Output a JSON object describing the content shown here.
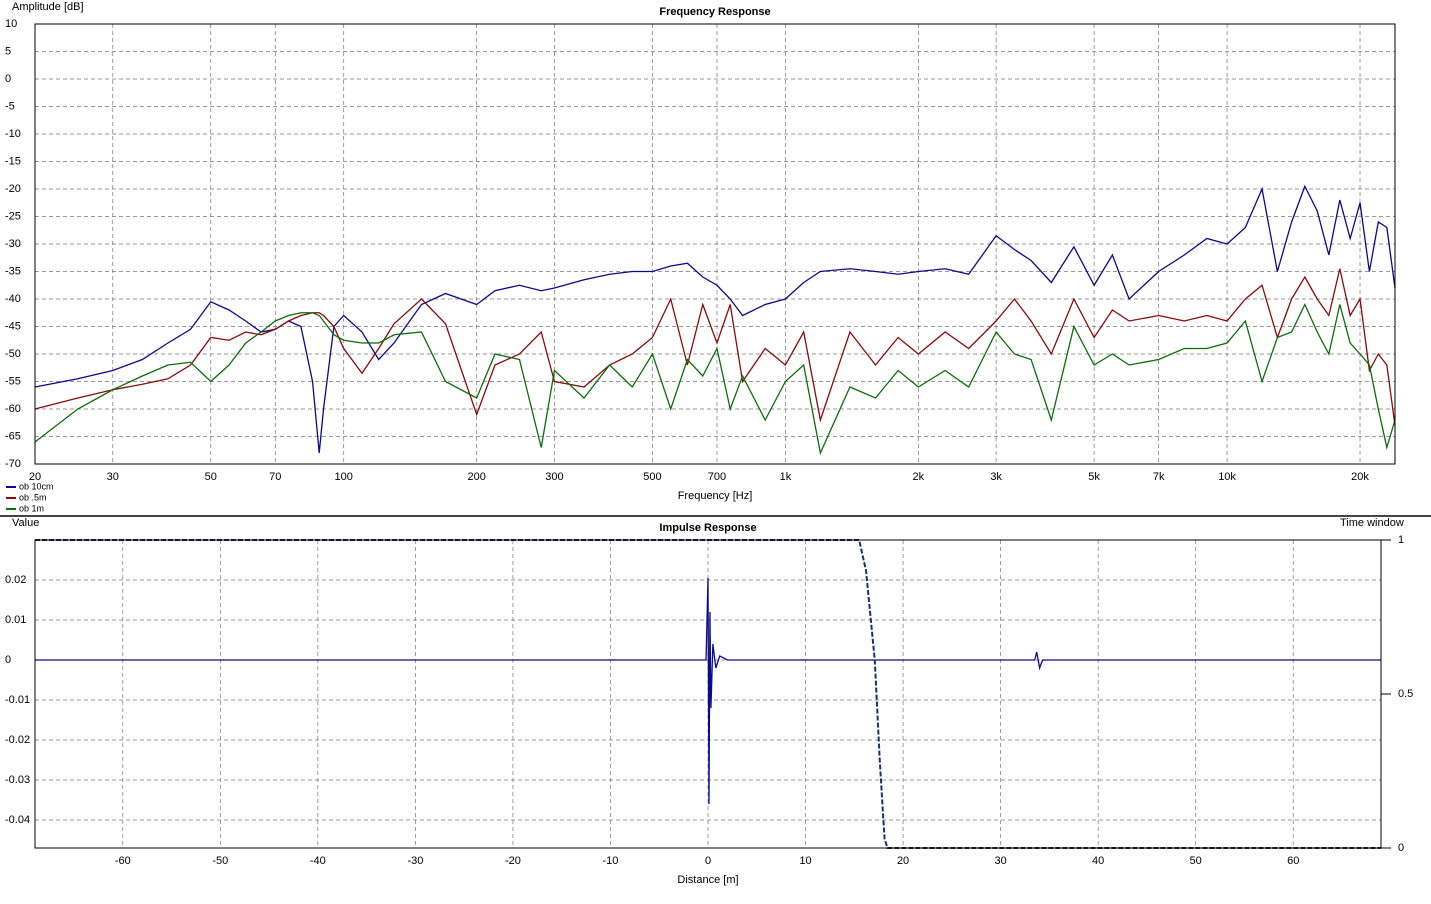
{
  "chart_data": [
    {
      "type": "line",
      "title": "Frequency Response",
      "ylabel": "Amplitude [dB]",
      "xlabel": "Frequency [Hz]",
      "xscale": "log",
      "grid": true,
      "legend": "bottom-left",
      "xlim": [
        20,
        24000
      ],
      "ylim": [
        -70,
        10
      ],
      "xticks": [
        20,
        30,
        50,
        70,
        100,
        200,
        300,
        500,
        700,
        {
          "value": 1000,
          "label": "1k"
        },
        {
          "value": 2000,
          "label": "2k"
        },
        {
          "value": 3000,
          "label": "3k"
        },
        {
          "value": 5000,
          "label": "5k"
        },
        {
          "value": 7000,
          "label": "7k"
        },
        {
          "value": 10000,
          "label": "10k"
        },
        {
          "value": 20000,
          "label": "20k"
        }
      ],
      "yticks": [
        -70,
        -65,
        -60,
        -55,
        -50,
        -45,
        -40,
        -35,
        -30,
        -25,
        -20,
        -15,
        -10,
        -5,
        0,
        5,
        10
      ],
      "x": [
        20,
        25,
        30,
        35,
        40,
        45,
        50,
        55,
        60,
        65,
        70,
        75,
        80,
        85,
        88,
        90,
        95,
        100,
        110,
        120,
        130,
        150,
        170,
        200,
        220,
        250,
        280,
        300,
        350,
        400,
        450,
        500,
        550,
        600,
        650,
        700,
        750,
        800,
        900,
        1000,
        1100,
        1200,
        1400,
        1600,
        1800,
        2000,
        2300,
        2600,
        3000,
        3300,
        3600,
        4000,
        4500,
        5000,
        5500,
        6000,
        7000,
        8000,
        9000,
        10000,
        11000,
        12000,
        13000,
        14000,
        15000,
        16000,
        17000,
        18000,
        19000,
        20000,
        21000,
        22000,
        23000,
        24000
      ],
      "series": [
        {
          "name": "ob 10cm",
          "color": "#0a0a8c",
          "values": [
            -56,
            -54.5,
            -53,
            -51,
            -48,
            -45.5,
            -40.5,
            -42,
            -44,
            -46,
            -45.5,
            -44,
            -45,
            -55,
            -68,
            -60,
            -45,
            -43,
            -46,
            -51,
            -48,
            -41,
            -39,
            -41,
            -38.5,
            -37.5,
            -38.5,
            -38,
            -36.5,
            -35.5,
            -35,
            -35,
            -34,
            -33.5,
            -36,
            -37.5,
            -40,
            -43,
            -41,
            -40,
            -37,
            -35,
            -34.5,
            -35,
            -35.5,
            -35,
            -34.5,
            -35.5,
            -28.5,
            -31,
            -33,
            -37,
            -30.5,
            -37.5,
            -32,
            -40,
            -35,
            -32,
            -29,
            -30,
            -27,
            -20,
            -35,
            -26,
            -19.5,
            -24,
            -32,
            -22,
            -29,
            -22.5,
            -35,
            -26,
            -27,
            -38
          ]
        },
        {
          "name": "ob .5m",
          "color": "#8b0a0a",
          "values": [
            -60,
            -58,
            -56.5,
            -55.5,
            -54.5,
            -52,
            -47,
            -47.5,
            -46,
            -46.5,
            -45.5,
            -44,
            -43,
            -42.5,
            -42.5,
            -43,
            -45,
            -49,
            -53.5,
            -49,
            -44.5,
            -40,
            -44.5,
            -61,
            -52,
            -50,
            -46,
            -55,
            -56,
            -52,
            -50,
            -47,
            -40,
            -52,
            -41,
            -48,
            -41,
            -55,
            -49,
            -52,
            -46,
            -62,
            -46,
            -52,
            -47,
            -50,
            -46,
            -49,
            -44,
            -40,
            -44,
            -50,
            -40,
            -47,
            -42,
            -44,
            -43,
            -44,
            -43,
            -44,
            -40,
            -37.5,
            -47,
            -40,
            -36,
            -40,
            -43,
            -34.5,
            -43,
            -40,
            -53,
            -50,
            -52,
            -63
          ]
        },
        {
          "name": "ob 1m",
          "color": "#0a6e0a",
          "values": [
            -66,
            -60,
            -56.5,
            -54,
            -52,
            -51.5,
            -55,
            -52,
            -48,
            -46,
            -44,
            -43,
            -42.5,
            -42.5,
            -43,
            -44,
            -46.5,
            -47.5,
            -48,
            -48,
            -46.5,
            -46,
            -55,
            -58,
            -50,
            -51,
            -67,
            -53,
            -58,
            -52,
            -56,
            -50,
            -60,
            -51,
            -54,
            -49,
            -60,
            -54,
            -62,
            -55,
            -52,
            -68,
            -56,
            -58,
            -53,
            -56,
            -53,
            -56,
            -46,
            -50,
            -51,
            -62,
            -45,
            -52,
            -50,
            -52,
            -51,
            -49,
            -49,
            -48,
            -44,
            -55,
            -47,
            -46,
            -41,
            -46,
            -50,
            -41,
            -48,
            -50,
            -52,
            -60,
            -67,
            -62
          ]
        }
      ]
    },
    {
      "type": "line",
      "title": "Impulse Response",
      "ylabel": "Value",
      "xlabel": "Distance [m]",
      "y2label": "Time window",
      "xscale": "linear",
      "grid": true,
      "xlim": [
        -69,
        69
      ],
      "ylim": [
        -0.047,
        0.03
      ],
      "y2lim": [
        0,
        1
      ],
      "xticks": [
        -60,
        -50,
        -40,
        -30,
        -20,
        -10,
        0,
        10,
        20,
        30,
        40,
        50,
        60
      ],
      "yticks": [
        -0.04,
        -0.03,
        -0.02,
        -0.01,
        0,
        0.01,
        0.02
      ],
      "y2ticks": [
        0,
        0.5,
        1
      ],
      "series": [
        {
          "color": "#0a0a8c",
          "x": [
            -69,
            -0.2,
            0,
            0.1,
            0.2,
            0.3,
            0.5,
            0.8,
            1.2,
            2,
            6,
            33.5,
            33.7,
            34,
            34.3,
            69
          ],
          "values": [
            0,
            0,
            0.0205,
            -0.036,
            0.012,
            -0.012,
            0.004,
            -0.002,
            0.001,
            0,
            0,
            0,
            0.002,
            -0.002,
            0,
            0
          ]
        },
        {
          "color": "#1b2f6b",
          "axis": "y2",
          "linestyle": "dashed",
          "x": [
            -69,
            15.5,
            16.2,
            17.1,
            17.6,
            18.1,
            18.4,
            69
          ],
          "values": [
            1,
            1,
            0.9,
            0.61,
            0.29,
            0.03,
            0,
            0
          ]
        }
      ]
    }
  ]
}
